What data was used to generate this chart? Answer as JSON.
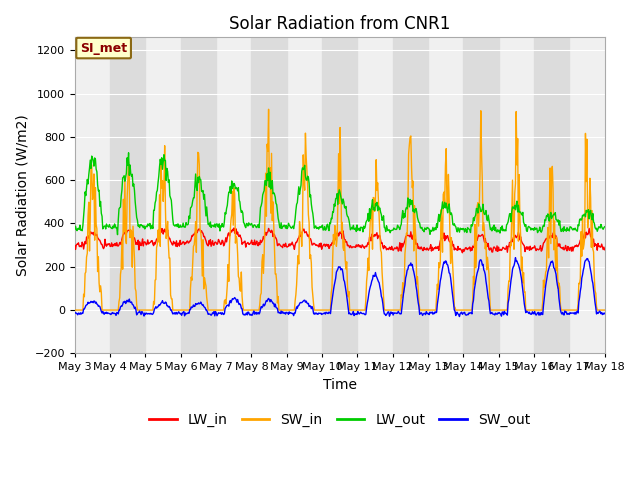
{
  "title": "Solar Radiation from CNR1",
  "xlabel": "Time",
  "ylabel": "Solar Radiation (W/m2)",
  "ylim": [
    -200,
    1260
  ],
  "yticks": [
    -200,
    0,
    200,
    400,
    600,
    800,
    1000,
    1200
  ],
  "x_tick_labels": [
    "May 3",
    "May 4",
    "May 5",
    "May 6",
    "May 7",
    "May 8",
    "May 9",
    "May 10",
    "May 11",
    "May 12",
    "May 13",
    "May 14",
    "May 15",
    "May 16",
    "May 17",
    "May 18"
  ],
  "x_tick_positions": [
    0,
    1,
    2,
    3,
    4,
    5,
    6,
    7,
    8,
    9,
    10,
    11,
    12,
    13,
    14,
    15
  ],
  "series": {
    "LW_in": {
      "color": "#ff0000",
      "label": "LW_in"
    },
    "SW_in": {
      "color": "#ffa500",
      "label": "SW_in"
    },
    "LW_out": {
      "color": "#00cc00",
      "label": "LW_out"
    },
    "SW_out": {
      "color": "#0000ff",
      "label": "SW_out"
    }
  },
  "annotation_text": "SI_met",
  "bg_color": "#ffffff",
  "plot_bg_color": "#f0f0f0",
  "band_color": "#dcdcdc",
  "grid_color": "#ffffff",
  "title_fontsize": 12,
  "axis_fontsize": 10,
  "tick_fontsize": 8,
  "legend_fontsize": 10
}
